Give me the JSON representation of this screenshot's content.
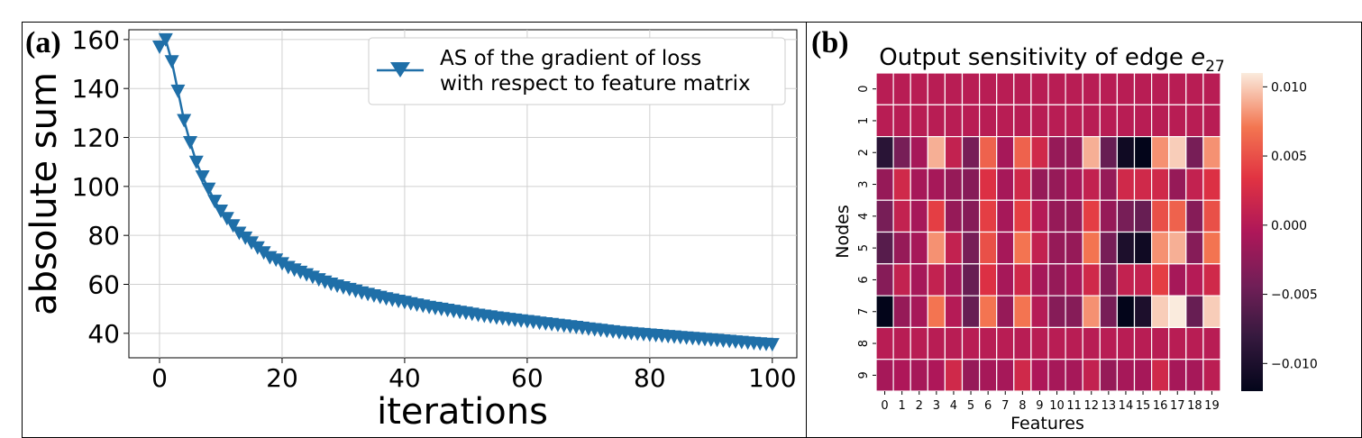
{
  "panels": {
    "a": {
      "letter": "(a)"
    },
    "b": {
      "letter": "(b)"
    }
  },
  "chart_data": [
    {
      "type": "line",
      "title": "",
      "xlabel": "iterations",
      "ylabel": "absolute sum",
      "xlim": [
        -5,
        104
      ],
      "ylim": [
        30,
        164
      ],
      "xticks": [
        0,
        20,
        40,
        60,
        80,
        100
      ],
      "yticks": [
        40,
        60,
        80,
        100,
        120,
        140,
        160
      ],
      "grid": true,
      "legend": "top-right",
      "marker": "triangle-down",
      "color": "#1f6fa8",
      "series": [
        {
          "name": "AS of the gradient of loss\nwith respect to feature matrix",
          "x": [
            0,
            1,
            2,
            3,
            4,
            5,
            6,
            7,
            8,
            9,
            10,
            11,
            12,
            13,
            14,
            15,
            16,
            17,
            18,
            19,
            20,
            21,
            22,
            23,
            24,
            25,
            26,
            27,
            28,
            29,
            30,
            31,
            32,
            33,
            34,
            35,
            36,
            37,
            38,
            39,
            40,
            41,
            42,
            43,
            44,
            45,
            46,
            47,
            48,
            49,
            50,
            51,
            52,
            53,
            54,
            55,
            56,
            57,
            58,
            59,
            60,
            61,
            62,
            63,
            64,
            65,
            66,
            67,
            68,
            69,
            70,
            71,
            72,
            73,
            74,
            75,
            76,
            77,
            78,
            79,
            80,
            81,
            82,
            83,
            84,
            85,
            86,
            87,
            88,
            89,
            90,
            91,
            92,
            93,
            94,
            95,
            96,
            97,
            98,
            99,
            100
          ],
          "y": [
            157,
            160,
            151,
            139,
            127,
            118,
            110,
            104,
            99,
            94,
            90,
            87,
            84,
            81,
            79,
            77,
            75,
            73,
            71,
            70,
            68.5,
            67,
            66,
            65,
            64,
            63,
            62,
            61,
            60.2,
            59.4,
            58.7,
            58,
            57.3,
            56.6,
            56,
            55.4,
            54.8,
            54.2,
            53.7,
            53.2,
            52.7,
            52.2,
            51.7,
            51.2,
            50.7,
            50.3,
            49.9,
            49.5,
            49.1,
            48.7,
            48.3,
            47.9,
            47.5,
            47.1,
            46.8,
            46.4,
            46.1,
            45.8,
            45.5,
            45.2,
            44.9,
            44.6,
            44.3,
            44,
            43.7,
            43.4,
            43.1,
            42.8,
            42.5,
            42.2,
            41.9,
            41.6,
            41.3,
            41,
            40.7,
            40.4,
            40.2,
            40,
            39.8,
            39.6,
            39.4,
            39.2,
            39,
            38.8,
            38.6,
            38.4,
            38.2,
            38,
            37.8,
            37.6,
            37.4,
            37.2,
            37,
            36.8,
            36.6,
            36.4,
            36.2,
            36,
            35.8,
            35.6,
            35.5
          ]
        }
      ]
    },
    {
      "type": "heatmap",
      "title_main": "Output sensitivity of edge ",
      "title_math": "e",
      "title_sub": "27",
      "xlabel": "Features",
      "ylabel": "Nodes",
      "x_categories": [
        "0",
        "1",
        "2",
        "3",
        "4",
        "5",
        "6",
        "7",
        "8",
        "9",
        "10",
        "11",
        "12",
        "13",
        "14",
        "15",
        "16",
        "17",
        "18",
        "19"
      ],
      "y_categories": [
        "0",
        "1",
        "2",
        "3",
        "4",
        "5",
        "6",
        "7",
        "8",
        "9"
      ],
      "colorbar": {
        "min": -0.012,
        "max": 0.011,
        "ticks": [
          0.01,
          0.005,
          0.0,
          -0.005,
          -0.01
        ],
        "tick_labels": [
          "0.010",
          "0.005",
          "0.000",
          "−0.005",
          "−0.010"
        ]
      },
      "values": [
        [
          0.0003,
          0.0003,
          0.0003,
          0.0003,
          0.0003,
          0.0003,
          0.0003,
          0.0003,
          0.0003,
          0.0003,
          0.0003,
          0.0003,
          0.0003,
          0.0003,
          0.0003,
          0.0003,
          0.0003,
          0.0003,
          0.0003,
          0.0003
        ],
        [
          0.0003,
          0.0003,
          0.0003,
          0.0003,
          0.0003,
          0.0003,
          0.0003,
          0.0003,
          0.0003,
          0.0003,
          0.0003,
          0.0003,
          0.0003,
          0.0003,
          0.0003,
          0.0003,
          0.0003,
          0.0003,
          0.0003,
          0.0003
        ],
        [
          -0.009,
          -0.004,
          -0.001,
          0.009,
          0.001,
          -0.004,
          0.006,
          -0.001,
          0.006,
          0.002,
          -0.002,
          -0.002,
          0.009,
          -0.005,
          -0.011,
          -0.012,
          0.008,
          0.01,
          -0.004,
          0.008
        ],
        [
          -0.002,
          0.002,
          -0.001,
          -0.001,
          -0.002,
          -0.003,
          0.003,
          -0.001,
          0.002,
          -0.002,
          -0.002,
          -0.001,
          0.001,
          -0.002,
          0.002,
          0.002,
          0.002,
          -0.002,
          0.001,
          0.003
        ],
        [
          -0.004,
          0.001,
          -0.001,
          0.004,
          -0.002,
          -0.003,
          0.004,
          -0.001,
          0.004,
          0.0,
          -0.002,
          -0.002,
          0.004,
          -0.002,
          -0.004,
          -0.005,
          0.005,
          0.006,
          -0.003,
          0.005
        ],
        [
          -0.006,
          -0.002,
          -0.001,
          0.008,
          0.001,
          -0.004,
          0.005,
          -0.001,
          0.007,
          0.001,
          -0.002,
          -0.002,
          0.007,
          -0.004,
          -0.01,
          -0.011,
          0.008,
          0.009,
          -0.003,
          0.007
        ],
        [
          -0.003,
          0.001,
          -0.001,
          0.001,
          -0.001,
          -0.005,
          0.003,
          -0.001,
          0.002,
          -0.001,
          -0.002,
          -0.001,
          0.002,
          -0.003,
          0.001,
          0.001,
          0.004,
          -0.001,
          0.0,
          0.002
        ],
        [
          -0.012,
          -0.002,
          -0.001,
          0.007,
          0.0,
          -0.005,
          0.007,
          -0.002,
          0.007,
          0.0,
          -0.003,
          -0.003,
          0.008,
          -0.004,
          -0.012,
          -0.01,
          0.01,
          0.011,
          -0.005,
          0.01
        ],
        [
          0.0003,
          0.0003,
          0.0003,
          0.0003,
          0.0003,
          0.0003,
          0.0003,
          0.0003,
          0.0003,
          0.0003,
          0.0003,
          0.0003,
          0.0003,
          0.0003,
          0.0003,
          0.0003,
          0.0003,
          0.0003,
          0.0003,
          0.0003
        ],
        [
          -0.001,
          -0.0005,
          -0.001,
          -0.0005,
          0.002,
          -0.002,
          -0.001,
          -0.001,
          0.002,
          -0.0005,
          -0.001,
          -0.001,
          0.001,
          -0.002,
          -0.001,
          -0.001,
          0.002,
          -0.001,
          -0.001,
          0.0005
        ]
      ]
    }
  ]
}
